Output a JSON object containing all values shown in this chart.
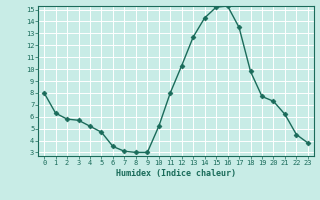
{
  "x": [
    0,
    1,
    2,
    3,
    4,
    5,
    6,
    7,
    8,
    9,
    10,
    11,
    12,
    13,
    14,
    15,
    16,
    17,
    18,
    19,
    20,
    21,
    22,
    23
  ],
  "y": [
    8.0,
    6.3,
    5.8,
    5.7,
    5.2,
    4.7,
    3.5,
    3.1,
    3.0,
    3.0,
    5.2,
    8.0,
    10.3,
    12.7,
    14.3,
    15.2,
    15.3,
    13.5,
    9.8,
    7.7,
    7.3,
    6.2,
    4.5,
    3.8
  ],
  "xlabel": "Humidex (Indice chaleur)",
  "ylim": [
    3,
    15
  ],
  "xlim": [
    -0.5,
    23.5
  ],
  "yticks": [
    3,
    4,
    5,
    6,
    7,
    8,
    9,
    10,
    11,
    12,
    13,
    14,
    15
  ],
  "xticks": [
    0,
    1,
    2,
    3,
    4,
    5,
    6,
    7,
    8,
    9,
    10,
    11,
    12,
    13,
    14,
    15,
    16,
    17,
    18,
    19,
    20,
    21,
    22,
    23
  ],
  "line_color": "#1a6b5a",
  "marker_color": "#1a6b5a",
  "bg_color": "#c8ece6",
  "grid_color": "#ffffff",
  "tick_label_color": "#1a6b5a",
  "xlabel_color": "#1a6b5a",
  "tick_fontsize": 5.0,
  "xlabel_fontsize": 6.0,
  "linewidth": 1.0,
  "markersize": 2.5
}
